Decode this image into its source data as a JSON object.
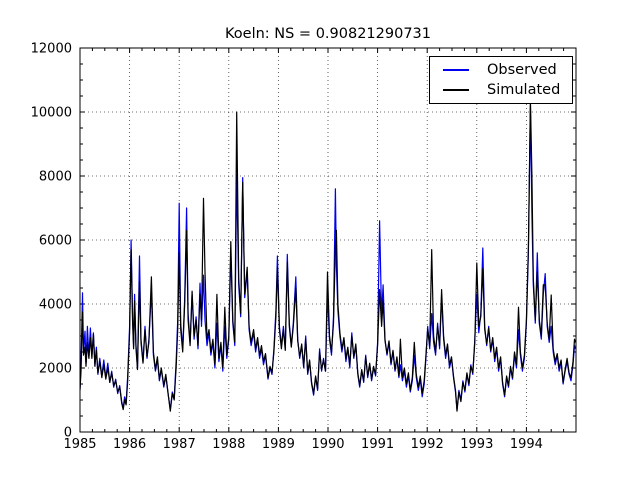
{
  "chart_data": {
    "type": "line",
    "title": "Koeln: NS = 0.90821290731",
    "xlabel": "",
    "ylabel": "",
    "xlim": [
      1985,
      1995
    ],
    "ylim": [
      0,
      12000
    ],
    "xticks": [
      1985,
      1986,
      1987,
      1988,
      1989,
      1990,
      1991,
      1992,
      1993,
      1994
    ],
    "xtick_labels": [
      "1985",
      "1986",
      "1987",
      "1988",
      "1989",
      "1990",
      "1991",
      "1992",
      "1993",
      "1994"
    ],
    "yticks": [
      0,
      2000,
      4000,
      6000,
      8000,
      10000,
      12000
    ],
    "ytick_labels": [
      "0",
      "2000",
      "4000",
      "6000",
      "8000",
      "10000",
      "12000"
    ],
    "minor_x_interval": 0.25,
    "minor_y_interval": 500,
    "grid": "dotted at major ticks",
    "legend_position": "upper right",
    "x": [
      1985.0,
      1985.02,
      1985.05,
      1985.07,
      1985.1,
      1985.12,
      1985.15,
      1985.18,
      1985.21,
      1985.24,
      1985.27,
      1985.3,
      1985.33,
      1985.36,
      1985.4,
      1985.44,
      1985.48,
      1985.52,
      1985.56,
      1985.6,
      1985.64,
      1985.68,
      1985.72,
      1985.76,
      1985.8,
      1985.84,
      1985.87,
      1985.9,
      1985.93,
      1985.96,
      1986.0,
      1986.03,
      1986.06,
      1986.08,
      1986.1,
      1986.13,
      1986.16,
      1986.2,
      1986.23,
      1986.27,
      1986.31,
      1986.35,
      1986.39,
      1986.44,
      1986.48,
      1986.52,
      1986.56,
      1986.6,
      1986.64,
      1986.69,
      1986.73,
      1986.78,
      1986.82,
      1986.86,
      1986.9,
      1986.94,
      1986.97,
      1987.0,
      1987.03,
      1987.07,
      1987.11,
      1987.15,
      1987.18,
      1987.22,
      1987.26,
      1987.3,
      1987.34,
      1987.38,
      1987.42,
      1987.45,
      1987.49,
      1987.52,
      1987.56,
      1987.6,
      1987.64,
      1987.68,
      1987.72,
      1987.76,
      1987.8,
      1987.84,
      1987.88,
      1987.92,
      1987.96,
      1988.0,
      1988.04,
      1988.08,
      1988.12,
      1988.16,
      1988.2,
      1988.24,
      1988.28,
      1988.32,
      1988.37,
      1988.41,
      1988.45,
      1988.5,
      1988.54,
      1988.58,
      1988.62,
      1988.66,
      1988.7,
      1988.74,
      1988.79,
      1988.83,
      1988.87,
      1988.91,
      1988.95,
      1988.98,
      1989.02,
      1989.06,
      1989.1,
      1989.14,
      1989.18,
      1989.22,
      1989.26,
      1989.3,
      1989.35,
      1989.39,
      1989.43,
      1989.47,
      1989.51,
      1989.55,
      1989.59,
      1989.63,
      1989.67,
      1989.71,
      1989.75,
      1989.79,
      1989.83,
      1989.87,
      1989.91,
      1989.95,
      1989.99,
      1990.03,
      1990.07,
      1990.11,
      1990.15,
      1990.17,
      1990.2,
      1990.24,
      1990.28,
      1990.32,
      1990.36,
      1990.4,
      1990.44,
      1990.48,
      1990.52,
      1990.56,
      1990.6,
      1990.64,
      1990.68,
      1990.72,
      1990.76,
      1990.8,
      1990.84,
      1990.88,
      1990.92,
      1990.96,
      1991.0,
      1991.04,
      1991.08,
      1991.11,
      1991.15,
      1991.19,
      1991.23,
      1991.27,
      1991.31,
      1991.35,
      1991.39,
      1991.43,
      1991.46,
      1991.5,
      1991.54,
      1991.58,
      1991.62,
      1991.66,
      1991.7,
      1991.74,
      1991.78,
      1991.82,
      1991.86,
      1991.9,
      1991.94,
      1991.97,
      1992.01,
      1992.05,
      1992.09,
      1992.13,
      1992.17,
      1992.21,
      1992.25,
      1992.29,
      1992.33,
      1992.37,
      1992.41,
      1992.45,
      1992.49,
      1992.53,
      1992.57,
      1992.6,
      1992.64,
      1992.68,
      1992.72,
      1992.76,
      1992.8,
      1992.84,
      1992.88,
      1992.92,
      1992.96,
      1993.0,
      1993.04,
      1993.08,
      1993.12,
      1993.16,
      1993.2,
      1993.24,
      1993.28,
      1993.32,
      1993.36,
      1993.4,
      1993.44,
      1993.48,
      1993.52,
      1993.56,
      1993.6,
      1993.64,
      1993.68,
      1993.72,
      1993.76,
      1993.8,
      1993.84,
      1993.88,
      1993.92,
      1993.96,
      1994.0,
      1994.04,
      1994.08,
      1994.11,
      1994.14,
      1994.18,
      1994.22,
      1994.26,
      1994.3,
      1994.34,
      1994.38,
      1994.42,
      1994.46,
      1994.5,
      1994.54,
      1994.58,
      1994.62,
      1994.66,
      1994.7,
      1994.74,
      1994.78,
      1994.82,
      1994.86,
      1994.9,
      1994.94,
      1994.97,
      1994.99
    ],
    "series": [
      {
        "name": "Observed",
        "color": "#0000ee",
        "values": [
          1350,
          2100,
          4350,
          2500,
          3150,
          2150,
          3300,
          2350,
          3250,
          2400,
          3100,
          2100,
          2650,
          1800,
          2300,
          1750,
          2250,
          1700,
          2150,
          1550,
          1900,
          1400,
          1650,
          1200,
          1450,
          950,
          750,
          1100,
          900,
          1700,
          3300,
          6000,
          3600,
          2700,
          4300,
          2700,
          2000,
          5500,
          2900,
          2200,
          3300,
          2300,
          2900,
          4400,
          2400,
          1900,
          2250,
          1600,
          1950,
          1400,
          1750,
          1150,
          700,
          1250,
          1050,
          2250,
          3500,
          7150,
          3400,
          2600,
          4200,
          7000,
          3700,
          2800,
          4300,
          2900,
          3600,
          2600,
          4650,
          3300,
          4900,
          3500,
          2700,
          3100,
          2400,
          2800,
          2000,
          3400,
          2200,
          2700,
          1900,
          3300,
          2300,
          2900,
          5600,
          3400,
          2700,
          8050,
          4600,
          3600,
          7950,
          4200,
          5000,
          3200,
          2700,
          3100,
          2500,
          2900,
          2300,
          2600,
          2100,
          2400,
          1650,
          2000,
          1800,
          2600,
          3800,
          5500,
          3300,
          2700,
          3300,
          2600,
          5550,
          3400,
          2700,
          3400,
          4850,
          2900,
          2300,
          2700,
          2000,
          3000,
          1800,
          2200,
          1500,
          1150,
          1700,
          1300,
          2600,
          1900,
          2300,
          1900,
          4300,
          2900,
          2400,
          3600,
          7600,
          5200,
          3800,
          3000,
          2500,
          2900,
          2200,
          2600,
          2000,
          3100,
          2300,
          2700,
          1800,
          1400,
          1900,
          1550,
          2400,
          1700,
          2100,
          1600,
          2000,
          1750,
          2800,
          6600,
          3600,
          4600,
          2900,
          2400,
          2800,
          2100,
          2500,
          1900,
          2300,
          1700,
          2100,
          1600,
          1900,
          1400,
          1750,
          1250,
          1600,
          2400,
          1700,
          1300,
          1650,
          1100,
          1500,
          2200,
          3300,
          2600,
          3700,
          2800,
          2400,
          3400,
          2600,
          4200,
          2900,
          2300,
          2700,
          2000,
          2300,
          1700,
          1250,
          700,
          1300,
          1000,
          1600,
          1250,
          1800,
          1450,
          2100,
          1800,
          2900,
          4300,
          3100,
          3700,
          5750,
          3300,
          2700,
          3300,
          2500,
          2900,
          2200,
          2600,
          1900,
          2300,
          1500,
          1100,
          1700,
          1400,
          2000,
          1650,
          2400,
          2000,
          3200,
          2400,
          1900,
          2300,
          3400,
          5600,
          10200,
          6800,
          4600,
          3400,
          5600,
          3400,
          2900,
          4300,
          4950,
          3300,
          2800,
          3300,
          2500,
          2100,
          2400,
          1900,
          2200,
          1500,
          1900,
          2200,
          1800,
          1600,
          2100,
          2700,
          2600
        ]
      },
      {
        "name": "Simulated",
        "color": "#000000",
        "values": [
          1300,
          1900,
          3750,
          2400,
          2650,
          2050,
          2800,
          2300,
          2950,
          2300,
          3050,
          2050,
          2550,
          1850,
          2200,
          1700,
          2100,
          1650,
          2000,
          1550,
          1850,
          1450,
          1600,
          1250,
          1400,
          900,
          700,
          1000,
          850,
          1550,
          3100,
          5700,
          3400,
          2600,
          4100,
          2600,
          1950,
          4700,
          2800,
          2150,
          3200,
          2350,
          2800,
          4850,
          2500,
          1950,
          2350,
          1650,
          2000,
          1450,
          1800,
          1150,
          650,
          1200,
          1000,
          2050,
          3200,
          5600,
          3200,
          2500,
          4000,
          6300,
          3500,
          2700,
          4400,
          3000,
          3500,
          2700,
          4300,
          3500,
          7300,
          5000,
          2900,
          3200,
          2500,
          2900,
          2100,
          4300,
          2300,
          2800,
          2000,
          3900,
          2400,
          3000,
          5950,
          3500,
          2800,
          10000,
          4800,
          3700,
          7800,
          4300,
          5150,
          3300,
          2800,
          3200,
          2600,
          2950,
          2400,
          2700,
          2200,
          2450,
          1700,
          2050,
          1850,
          2500,
          3600,
          5150,
          3200,
          2600,
          3200,
          2550,
          5300,
          3300,
          2650,
          3300,
          4500,
          2850,
          2350,
          2750,
          2050,
          2900,
          1850,
          2250,
          1550,
          1200,
          1750,
          1350,
          2500,
          1950,
          2250,
          1900,
          5000,
          3000,
          2500,
          3400,
          5800,
          6300,
          4000,
          3100,
          2600,
          2950,
          2300,
          2650,
          2100,
          3000,
          2350,
          2750,
          1850,
          1450,
          1950,
          1600,
          2350,
          1750,
          2150,
          1650,
          2050,
          1800,
          2700,
          4450,
          3300,
          4100,
          2850,
          2450,
          2850,
          2150,
          2550,
          1950,
          2350,
          1750,
          2900,
          1700,
          2000,
          1500,
          1850,
          1300,
          1700,
          2800,
          1800,
          1400,
          1750,
          1200,
          1600,
          2300,
          3200,
          2700,
          5700,
          3000,
          2500,
          3300,
          2700,
          4450,
          3000,
          2400,
          2750,
          2100,
          2350,
          1750,
          1300,
          650,
          1250,
          950,
          1550,
          1300,
          1850,
          1500,
          2050,
          1850,
          2800,
          5280,
          3300,
          3600,
          5100,
          3200,
          2750,
          3250,
          2550,
          2950,
          2300,
          2650,
          2000,
          2350,
          1550,
          1150,
          1750,
          1450,
          2050,
          1700,
          2500,
          2100,
          3900,
          2500,
          2000,
          2400,
          3500,
          5800,
          10400,
          8050,
          4800,
          3500,
          5000,
          3500,
          3000,
          4600,
          4600,
          3400,
          2900,
          4280,
          2600,
          2200,
          2450,
          2000,
          2250,
          1550,
          1950,
          2300,
          1850,
          1700,
          2200,
          2900,
          2800
        ]
      }
    ]
  }
}
